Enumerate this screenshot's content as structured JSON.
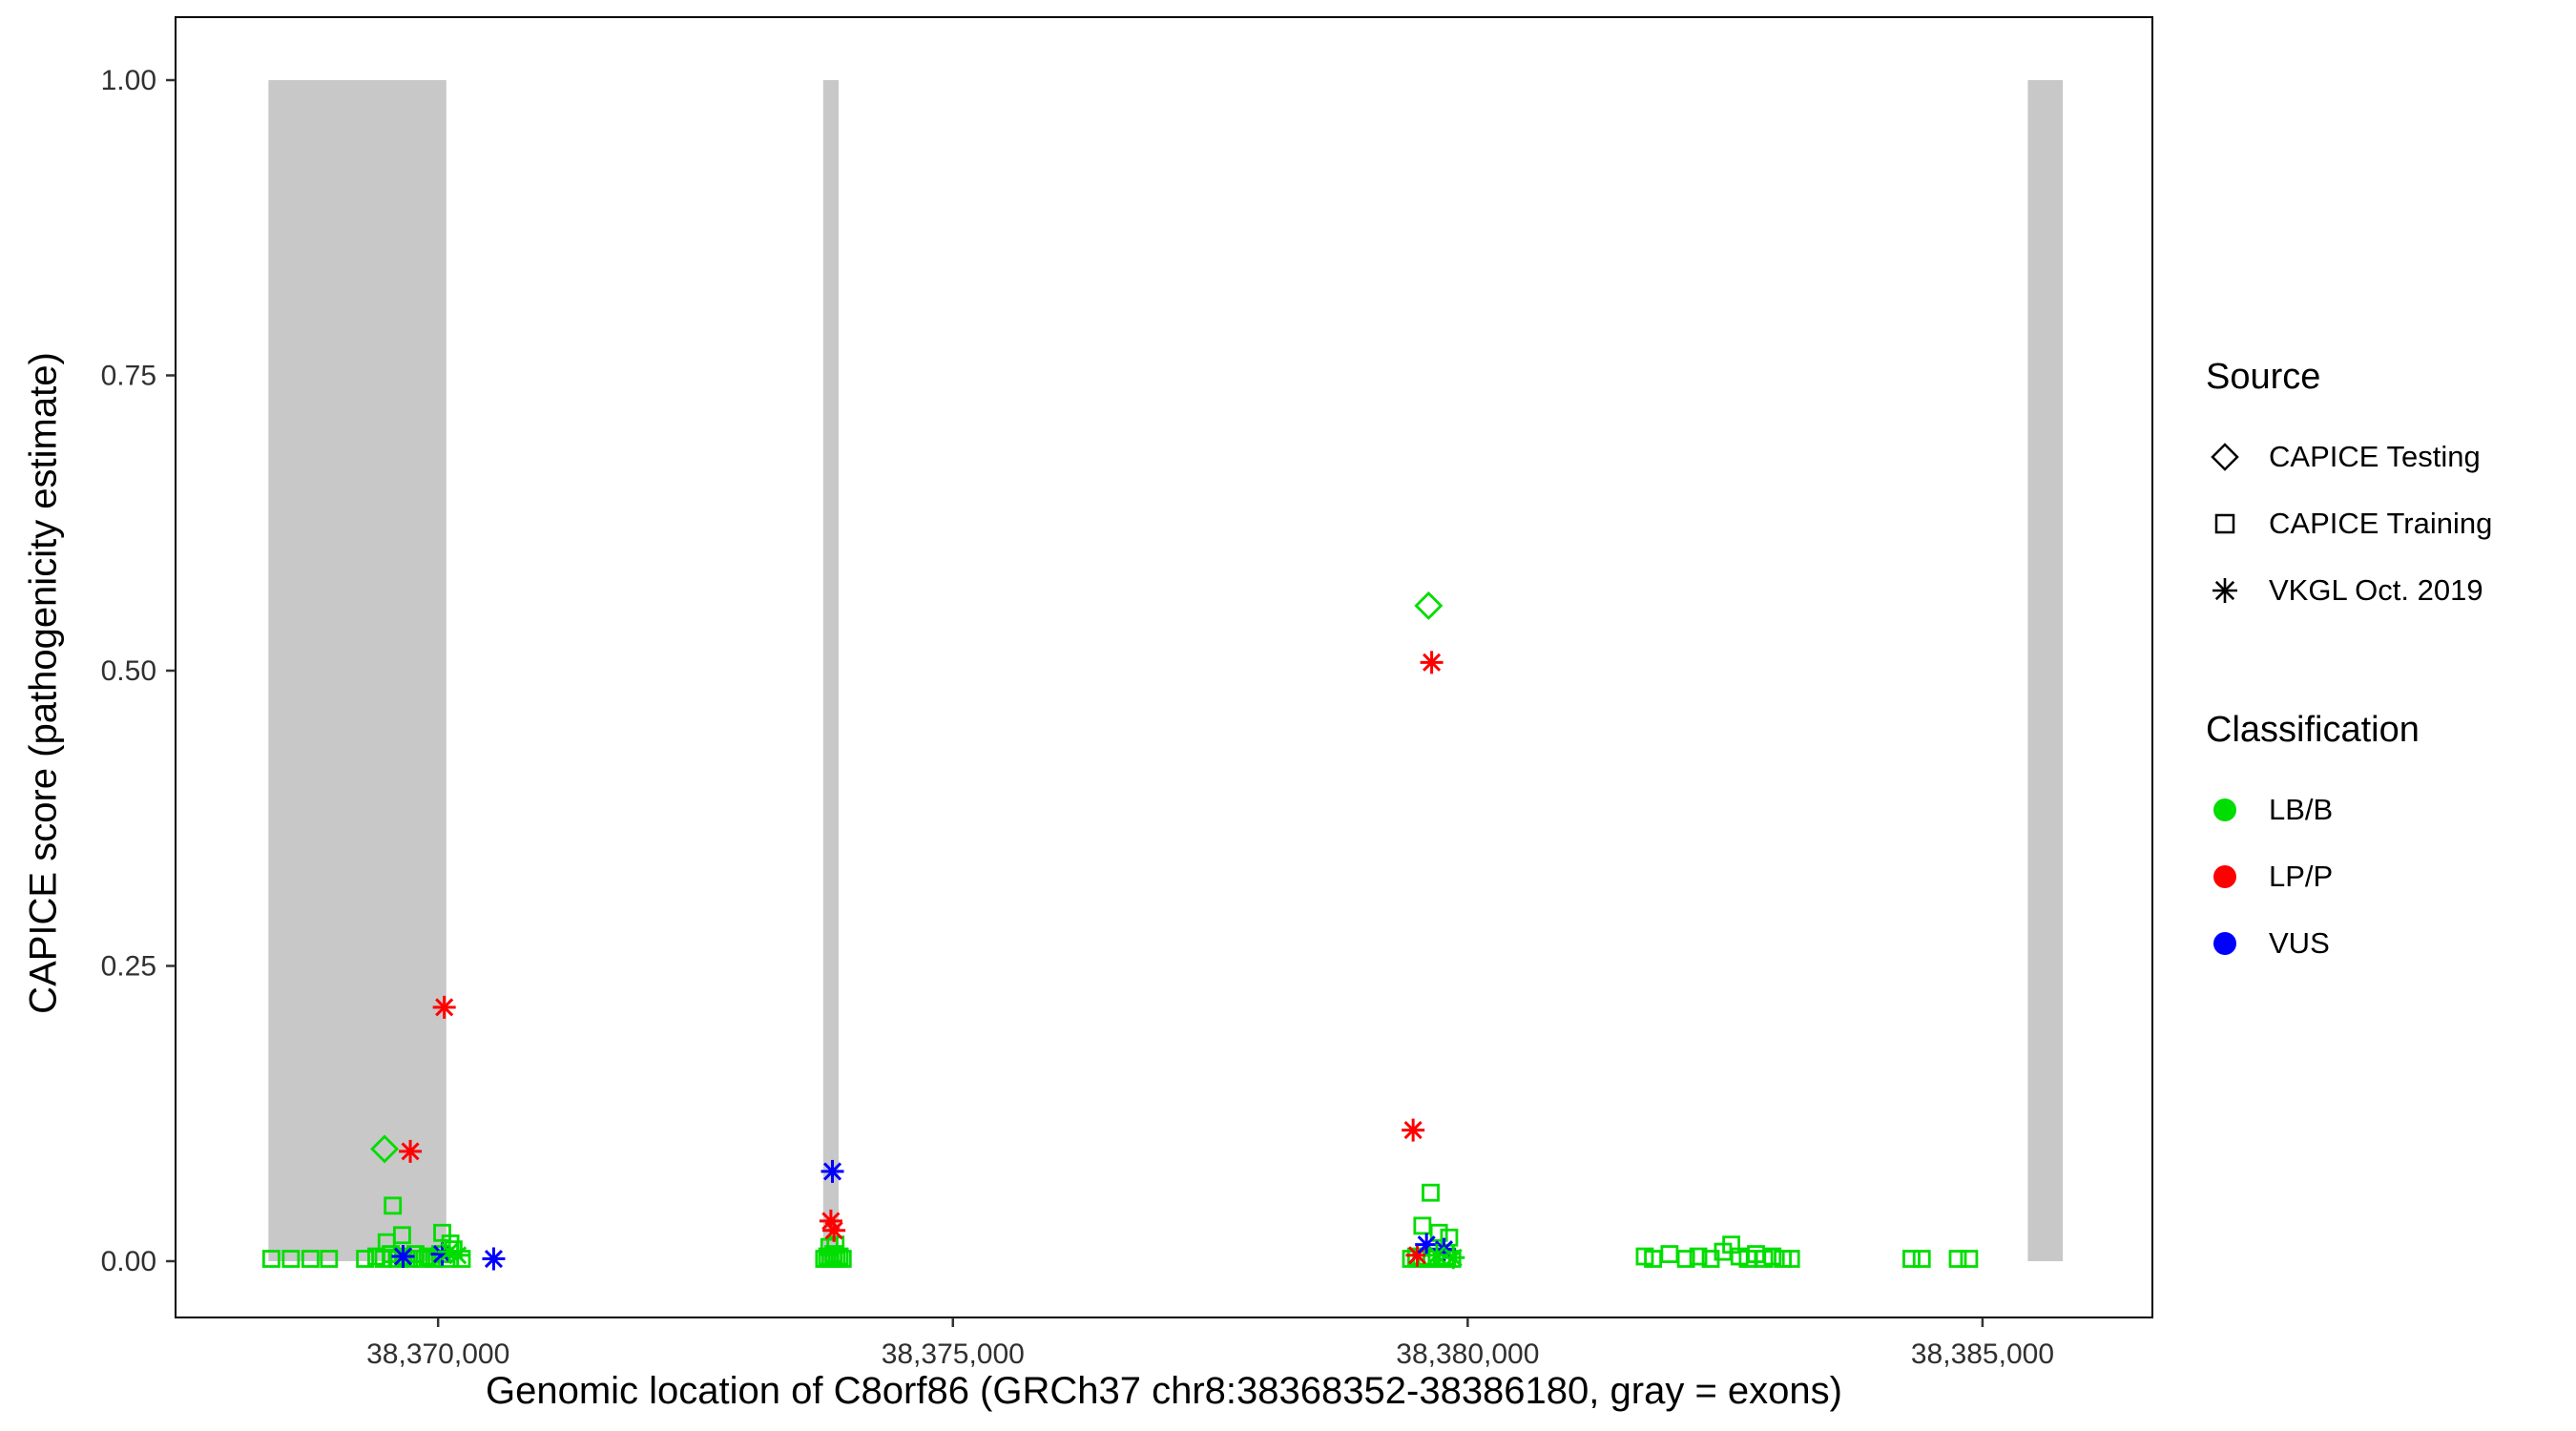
{
  "chart_data": {
    "type": "scatter",
    "title": "",
    "xlabel": "Genomic location of C8orf86 (GRCh37 chr8:38368352-38386180, gray = exons)",
    "ylabel": "CAPICE score (pathogenicity estimate)",
    "x_domain": [
      38367450,
      38386650
    ],
    "y_domain": [
      0,
      1
    ],
    "grid": false,
    "x_ticks": [
      {
        "value": 38370000,
        "label": "38,370,000"
      },
      {
        "value": 38375000,
        "label": "38,375,000"
      },
      {
        "value": 38380000,
        "label": "38,380,000"
      },
      {
        "value": 38385000,
        "label": "38,385,000"
      }
    ],
    "y_ticks": [
      {
        "value": 0.0,
        "label": "0.00"
      },
      {
        "value": 0.25,
        "label": "0.25"
      },
      {
        "value": 0.5,
        "label": "0.50"
      },
      {
        "value": 0.75,
        "label": "0.75"
      },
      {
        "value": 1.0,
        "label": "1.00"
      }
    ],
    "exon_color": "#c8c8c8",
    "exons": [
      {
        "start": 38368352,
        "end": 38370080
      },
      {
        "start": 38373740,
        "end": 38373890
      },
      {
        "start": 38385440,
        "end": 38385780
      }
    ],
    "classification_colors": {
      "LB/B": "#00dd00",
      "LP/P": "#ff0000",
      "VUS": "#0000ff"
    },
    "source_shapes": {
      "CAPICE Testing": "diamond",
      "CAPICE Training": "square",
      "VKGL Oct. 2019": "asterisk"
    },
    "series": [
      {
        "source": "CAPICE Training",
        "classification": "LB/B",
        "points": [
          [
            38368380,
            0.002
          ],
          [
            38368570,
            0.002
          ],
          [
            38368760,
            0.002
          ],
          [
            38368940,
            0.002
          ],
          [
            38369290,
            0.002
          ],
          [
            38369400,
            0.004
          ],
          [
            38369470,
            0.002
          ],
          [
            38369500,
            0.016
          ],
          [
            38369540,
            0.006
          ],
          [
            38369560,
            0.047
          ],
          [
            38369600,
            0.002
          ],
          [
            38369650,
            0.022
          ],
          [
            38369660,
            0.004
          ],
          [
            38369720,
            0.002
          ],
          [
            38369780,
            0.006
          ],
          [
            38369840,
            0.002
          ],
          [
            38369900,
            0.004
          ],
          [
            38369960,
            0.002
          ],
          [
            38370020,
            0.006
          ],
          [
            38370040,
            0.024
          ],
          [
            38370080,
            0.002
          ],
          [
            38370120,
            0.015
          ],
          [
            38370150,
            0.01
          ],
          [
            38370230,
            0.002
          ],
          [
            38373750,
            0.002
          ],
          [
            38373780,
            0.004
          ],
          [
            38373800,
            0.012
          ],
          [
            38373810,
            0.002
          ],
          [
            38373840,
            0.006
          ],
          [
            38373860,
            0.014
          ],
          [
            38373870,
            0.002
          ],
          [
            38373900,
            0.004
          ],
          [
            38373930,
            0.002
          ],
          [
            38379450,
            0.002
          ],
          [
            38379500,
            0.004
          ],
          [
            38379550,
            0.002
          ],
          [
            38379560,
            0.03
          ],
          [
            38379600,
            0.002
          ],
          [
            38379640,
            0.058
          ],
          [
            38379650,
            0.004
          ],
          [
            38379700,
            0.002
          ],
          [
            38379720,
            0.024
          ],
          [
            38379750,
            0.002
          ],
          [
            38379800,
            0.004
          ],
          [
            38379820,
            0.02
          ],
          [
            38379850,
            0.002
          ],
          [
            38381720,
            0.004
          ],
          [
            38381800,
            0.002
          ],
          [
            38381960,
            0.006
          ],
          [
            38382120,
            0.002
          ],
          [
            38382240,
            0.004
          ],
          [
            38382360,
            0.002
          ],
          [
            38382480,
            0.008
          ],
          [
            38382560,
            0.014
          ],
          [
            38382640,
            0.004
          ],
          [
            38382720,
            0.002
          ],
          [
            38382800,
            0.006
          ],
          [
            38382880,
            0.002
          ],
          [
            38382960,
            0.004
          ],
          [
            38383060,
            0.002
          ],
          [
            38383140,
            0.002
          ],
          [
            38384310,
            0.002
          ],
          [
            38384410,
            0.002
          ],
          [
            38384760,
            0.002
          ],
          [
            38384870,
            0.002
          ]
        ]
      },
      {
        "source": "CAPICE Testing",
        "classification": "LB/B",
        "points": [
          [
            38369480,
            0.095
          ],
          [
            38379620,
            0.555
          ]
        ]
      },
      {
        "source": "VKGL Oct. 2019",
        "classification": "LP/P",
        "points": [
          [
            38369730,
            0.093
          ],
          [
            38370060,
            0.215
          ],
          [
            38373815,
            0.034
          ],
          [
            38373845,
            0.026
          ],
          [
            38379470,
            0.111
          ],
          [
            38379650,
            0.507
          ],
          [
            38379510,
            0.005
          ]
        ]
      },
      {
        "source": "VKGL Oct. 2019",
        "classification": "VUS",
        "points": [
          [
            38369660,
            0.004
          ],
          [
            38370040,
            0.006
          ],
          [
            38370540,
            0.002
          ],
          [
            38373830,
            0.076
          ],
          [
            38379600,
            0.014
          ],
          [
            38379770,
            0.01
          ]
        ]
      },
      {
        "source": "VKGL Oct. 2019",
        "classification": "LB/B",
        "points": [
          [
            38370110,
            0.008
          ],
          [
            38370190,
            0.005
          ],
          [
            38379700,
            0.005
          ],
          [
            38379860,
            0.003
          ]
        ]
      }
    ],
    "legend": {
      "source": {
        "title": "Source",
        "items": [
          {
            "label": "CAPICE Testing",
            "shape": "diamond"
          },
          {
            "label": "CAPICE Training",
            "shape": "square"
          },
          {
            "label": "VKGL Oct. 2019",
            "shape": "asterisk"
          }
        ]
      },
      "classification": {
        "title": "Classification",
        "items": [
          {
            "label": "LB/B",
            "color": "#00dd00"
          },
          {
            "label": "LP/P",
            "color": "#ff0000"
          },
          {
            "label": "VUS",
            "color": "#0000ff"
          }
        ]
      }
    }
  }
}
